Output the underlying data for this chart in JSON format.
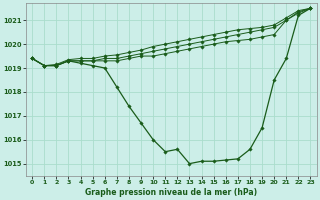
{
  "title": "Graphe pression niveau de la mer (hPa)",
  "background_color": "#cceee8",
  "grid_color": "#aaddcc",
  "line_color": "#1a5c1a",
  "xlim": [
    -0.5,
    23.5
  ],
  "ylim": [
    1014.5,
    1021.7
  ],
  "yticks": [
    1015,
    1016,
    1017,
    1018,
    1019,
    1020,
    1021
  ],
  "xticks": [
    0,
    1,
    2,
    3,
    4,
    5,
    6,
    7,
    8,
    9,
    10,
    11,
    12,
    13,
    14,
    15,
    16,
    17,
    18,
    19,
    20,
    21,
    22,
    23
  ],
  "series": {
    "main": [
      1019.4,
      1019.1,
      1019.1,
      1019.3,
      1019.2,
      1019.1,
      1019.0,
      1018.2,
      1017.4,
      1016.7,
      1016.0,
      1015.5,
      1015.6,
      1015.0,
      1015.1,
      1015.1,
      1015.15,
      1015.2,
      1015.6,
      1016.5,
      1018.5,
      1019.4,
      1021.2,
      1021.5
    ],
    "upper1": [
      1019.4,
      1019.1,
      1019.1,
      1019.3,
      1019.3,
      1019.3,
      1019.3,
      1019.3,
      1019.4,
      1019.5,
      1019.5,
      1019.6,
      1019.7,
      1019.8,
      1019.9,
      1020.0,
      1020.1,
      1020.15,
      1020.2,
      1020.3,
      1020.4,
      1021.0,
      1021.3,
      1021.5
    ],
    "upper2": [
      1019.4,
      1019.1,
      1019.1,
      1019.3,
      1019.3,
      1019.3,
      1019.4,
      1019.4,
      1019.5,
      1019.6,
      1019.7,
      1019.8,
      1019.9,
      1020.0,
      1020.1,
      1020.2,
      1020.3,
      1020.4,
      1020.5,
      1020.6,
      1020.7,
      1021.0,
      1021.35,
      1021.5
    ],
    "upper3": [
      1019.4,
      1019.1,
      1019.15,
      1019.35,
      1019.4,
      1019.4,
      1019.5,
      1019.55,
      1019.65,
      1019.75,
      1019.9,
      1020.0,
      1020.1,
      1020.2,
      1020.3,
      1020.4,
      1020.5,
      1020.6,
      1020.65,
      1020.7,
      1020.8,
      1021.1,
      1021.4,
      1021.5
    ]
  }
}
